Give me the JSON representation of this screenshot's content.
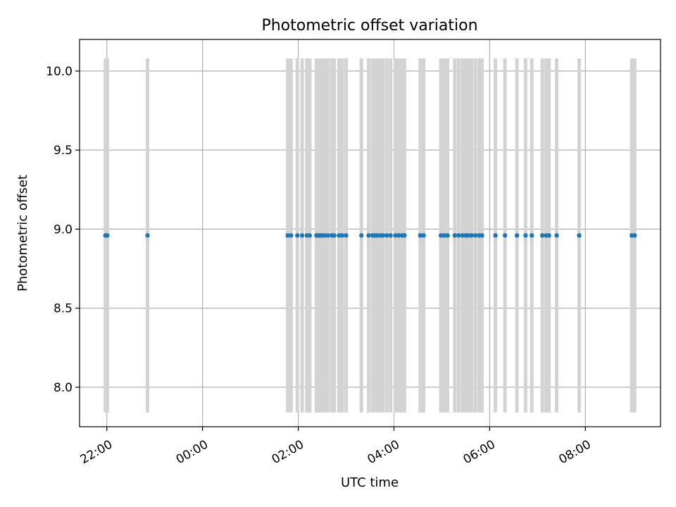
{
  "chart_data": {
    "type": "scatter",
    "title": "Photometric offset variation",
    "xlabel": "UTC time",
    "ylabel": "Photometric offset",
    "grid": true,
    "x_unit": "hours (UTC, relative to 00:00 of the second day; negative = previous evening)",
    "xlim": [
      -2.57,
      9.57
    ],
    "ylim": [
      7.75,
      10.2
    ],
    "x_ticks": [
      {
        "value": -2,
        "label": "22:00"
      },
      {
        "value": 0,
        "label": "00:00"
      },
      {
        "value": 2,
        "label": "02:00"
      },
      {
        "value": 4,
        "label": "04:00"
      },
      {
        "value": 6,
        "label": "06:00"
      },
      {
        "value": 8,
        "label": "08:00"
      }
    ],
    "y_ticks": [
      {
        "value": 8.0,
        "label": "8.0"
      },
      {
        "value": 8.5,
        "label": "8.5"
      },
      {
        "value": 9.0,
        "label": "9.0"
      },
      {
        "value": 9.5,
        "label": "9.5"
      },
      {
        "value": 10.0,
        "label": "10.0"
      }
    ],
    "errorbar_range": [
      7.84,
      10.08
    ],
    "marker_color": "#1f77b4",
    "errorbar_color": "#d3d3d3",
    "series": [
      {
        "x": [
          -2.03,
          -1.99,
          -1.15,
          1.78,
          1.85,
          1.98,
          2.08,
          2.18,
          2.24,
          2.38,
          2.42,
          2.46,
          2.5,
          2.55,
          2.62,
          2.7,
          2.75,
          2.85,
          2.92,
          3.0,
          3.32,
          3.47,
          3.55,
          3.6,
          3.65,
          3.72,
          3.77,
          3.85,
          3.93,
          4.03,
          4.1,
          4.17,
          4.22,
          4.55,
          4.62,
          4.98,
          5.05,
          5.12,
          5.27,
          5.35,
          5.43,
          5.5,
          5.55,
          5.62,
          5.7,
          5.78,
          5.84,
          6.12,
          6.32,
          6.57,
          6.75,
          6.88,
          7.1,
          7.18,
          7.24,
          7.4,
          7.87,
          8.97,
          9.03
        ],
        "y": [
          8.96,
          8.96,
          8.96,
          8.96,
          8.96,
          8.96,
          8.96,
          8.96,
          8.96,
          8.96,
          8.96,
          8.96,
          8.96,
          8.96,
          8.96,
          8.96,
          8.96,
          8.96,
          8.96,
          8.96,
          8.96,
          8.96,
          8.96,
          8.96,
          8.96,
          8.96,
          8.96,
          8.96,
          8.96,
          8.96,
          8.96,
          8.96,
          8.96,
          8.96,
          8.96,
          8.96,
          8.96,
          8.96,
          8.96,
          8.96,
          8.96,
          8.96,
          8.96,
          8.96,
          8.96,
          8.96,
          8.96,
          8.96,
          8.96,
          8.96,
          8.96,
          8.96,
          8.96,
          8.96,
          8.96,
          8.96,
          8.96,
          8.96,
          8.96
        ]
      }
    ]
  }
}
